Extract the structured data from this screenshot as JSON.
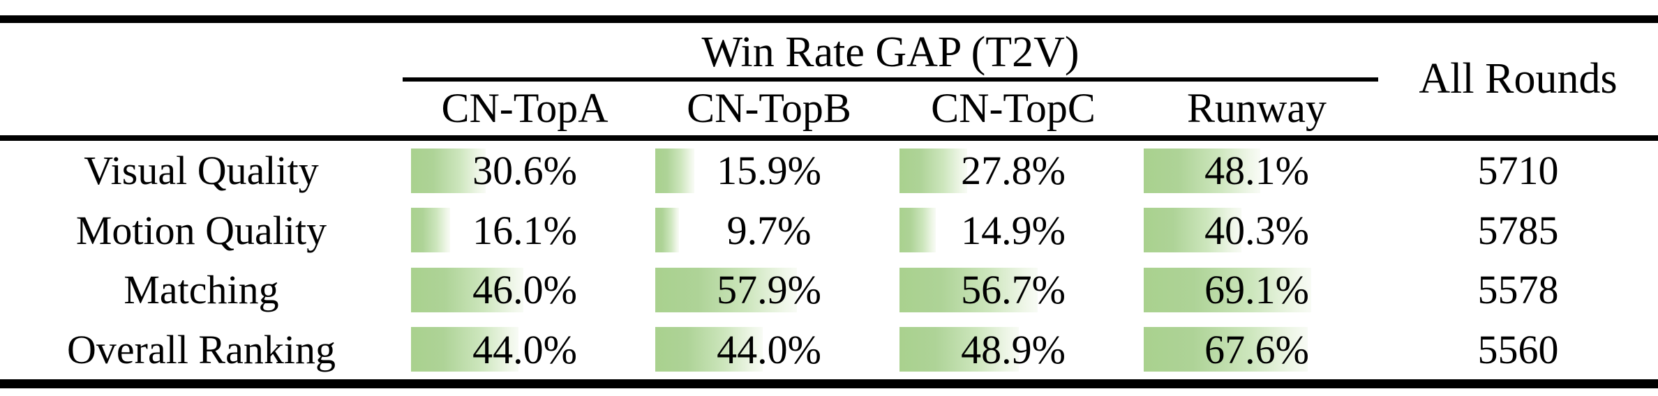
{
  "table": {
    "group_header": "Win Rate GAP (T2V)",
    "all_rounds_label": "All Rounds",
    "columns": [
      "CN-TopA",
      "CN-TopB",
      "CN-TopC",
      "Runway"
    ],
    "rows": [
      {
        "label": "Visual Quality",
        "cells": [
          {
            "pct": 30.6,
            "text": "30.6%"
          },
          {
            "pct": 15.9,
            "text": "15.9%"
          },
          {
            "pct": 27.8,
            "text": "27.8%"
          },
          {
            "pct": 48.1,
            "text": "48.1%"
          }
        ],
        "all_rounds": "5710"
      },
      {
        "label": "Motion Quality",
        "cells": [
          {
            "pct": 16.1,
            "text": "16.1%"
          },
          {
            "pct": 9.7,
            "text": "9.7%"
          },
          {
            "pct": 14.9,
            "text": "14.9%"
          },
          {
            "pct": 40.3,
            "text": "40.3%"
          }
        ],
        "all_rounds": "5785"
      },
      {
        "label": "Matching",
        "cells": [
          {
            "pct": 46.0,
            "text": "46.0%"
          },
          {
            "pct": 57.9,
            "text": "57.9%"
          },
          {
            "pct": 56.7,
            "text": "56.7%"
          },
          {
            "pct": 69.1,
            "text": "69.1%"
          }
        ],
        "all_rounds": "5578"
      },
      {
        "label": "Overall Ranking",
        "cells": [
          {
            "pct": 44.0,
            "text": "44.0%"
          },
          {
            "pct": 44.0,
            "text": "44.0%"
          },
          {
            "pct": 48.9,
            "text": "48.9%"
          },
          {
            "pct": 67.6,
            "text": "67.6%"
          }
        ],
        "all_rounds": "5560"
      }
    ]
  },
  "colors": {
    "bar_green": "#a9d18e",
    "bar_fade": "#f8fbf5",
    "rule": "#000000",
    "text": "#000000",
    "background": "#ffffff"
  },
  "chart_data": {
    "type": "table",
    "title": "Win Rate GAP (T2V)",
    "columns": [
      "",
      "CN-TopA",
      "CN-TopB",
      "CN-TopC",
      "Runway",
      "All Rounds"
    ],
    "rows": [
      [
        "Visual Quality",
        "30.6%",
        "15.9%",
        "27.8%",
        "48.1%",
        "5710"
      ],
      [
        "Motion Quality",
        "16.1%",
        "9.7%",
        "14.9%",
        "40.3%",
        "5785"
      ],
      [
        "Matching",
        "46.0%",
        "57.9%",
        "56.7%",
        "69.1%",
        "5578"
      ],
      [
        "Overall Ranking",
        "44.0%",
        "44.0%",
        "48.9%",
        "67.6%",
        "5560"
      ]
    ],
    "bar_values_percent": [
      [
        30.6,
        15.9,
        27.8,
        48.1
      ],
      [
        16.1,
        9.7,
        14.9,
        40.3
      ],
      [
        46.0,
        57.9,
        56.7,
        69.1
      ],
      [
        44.0,
        44.0,
        48.9,
        67.6
      ]
    ]
  }
}
